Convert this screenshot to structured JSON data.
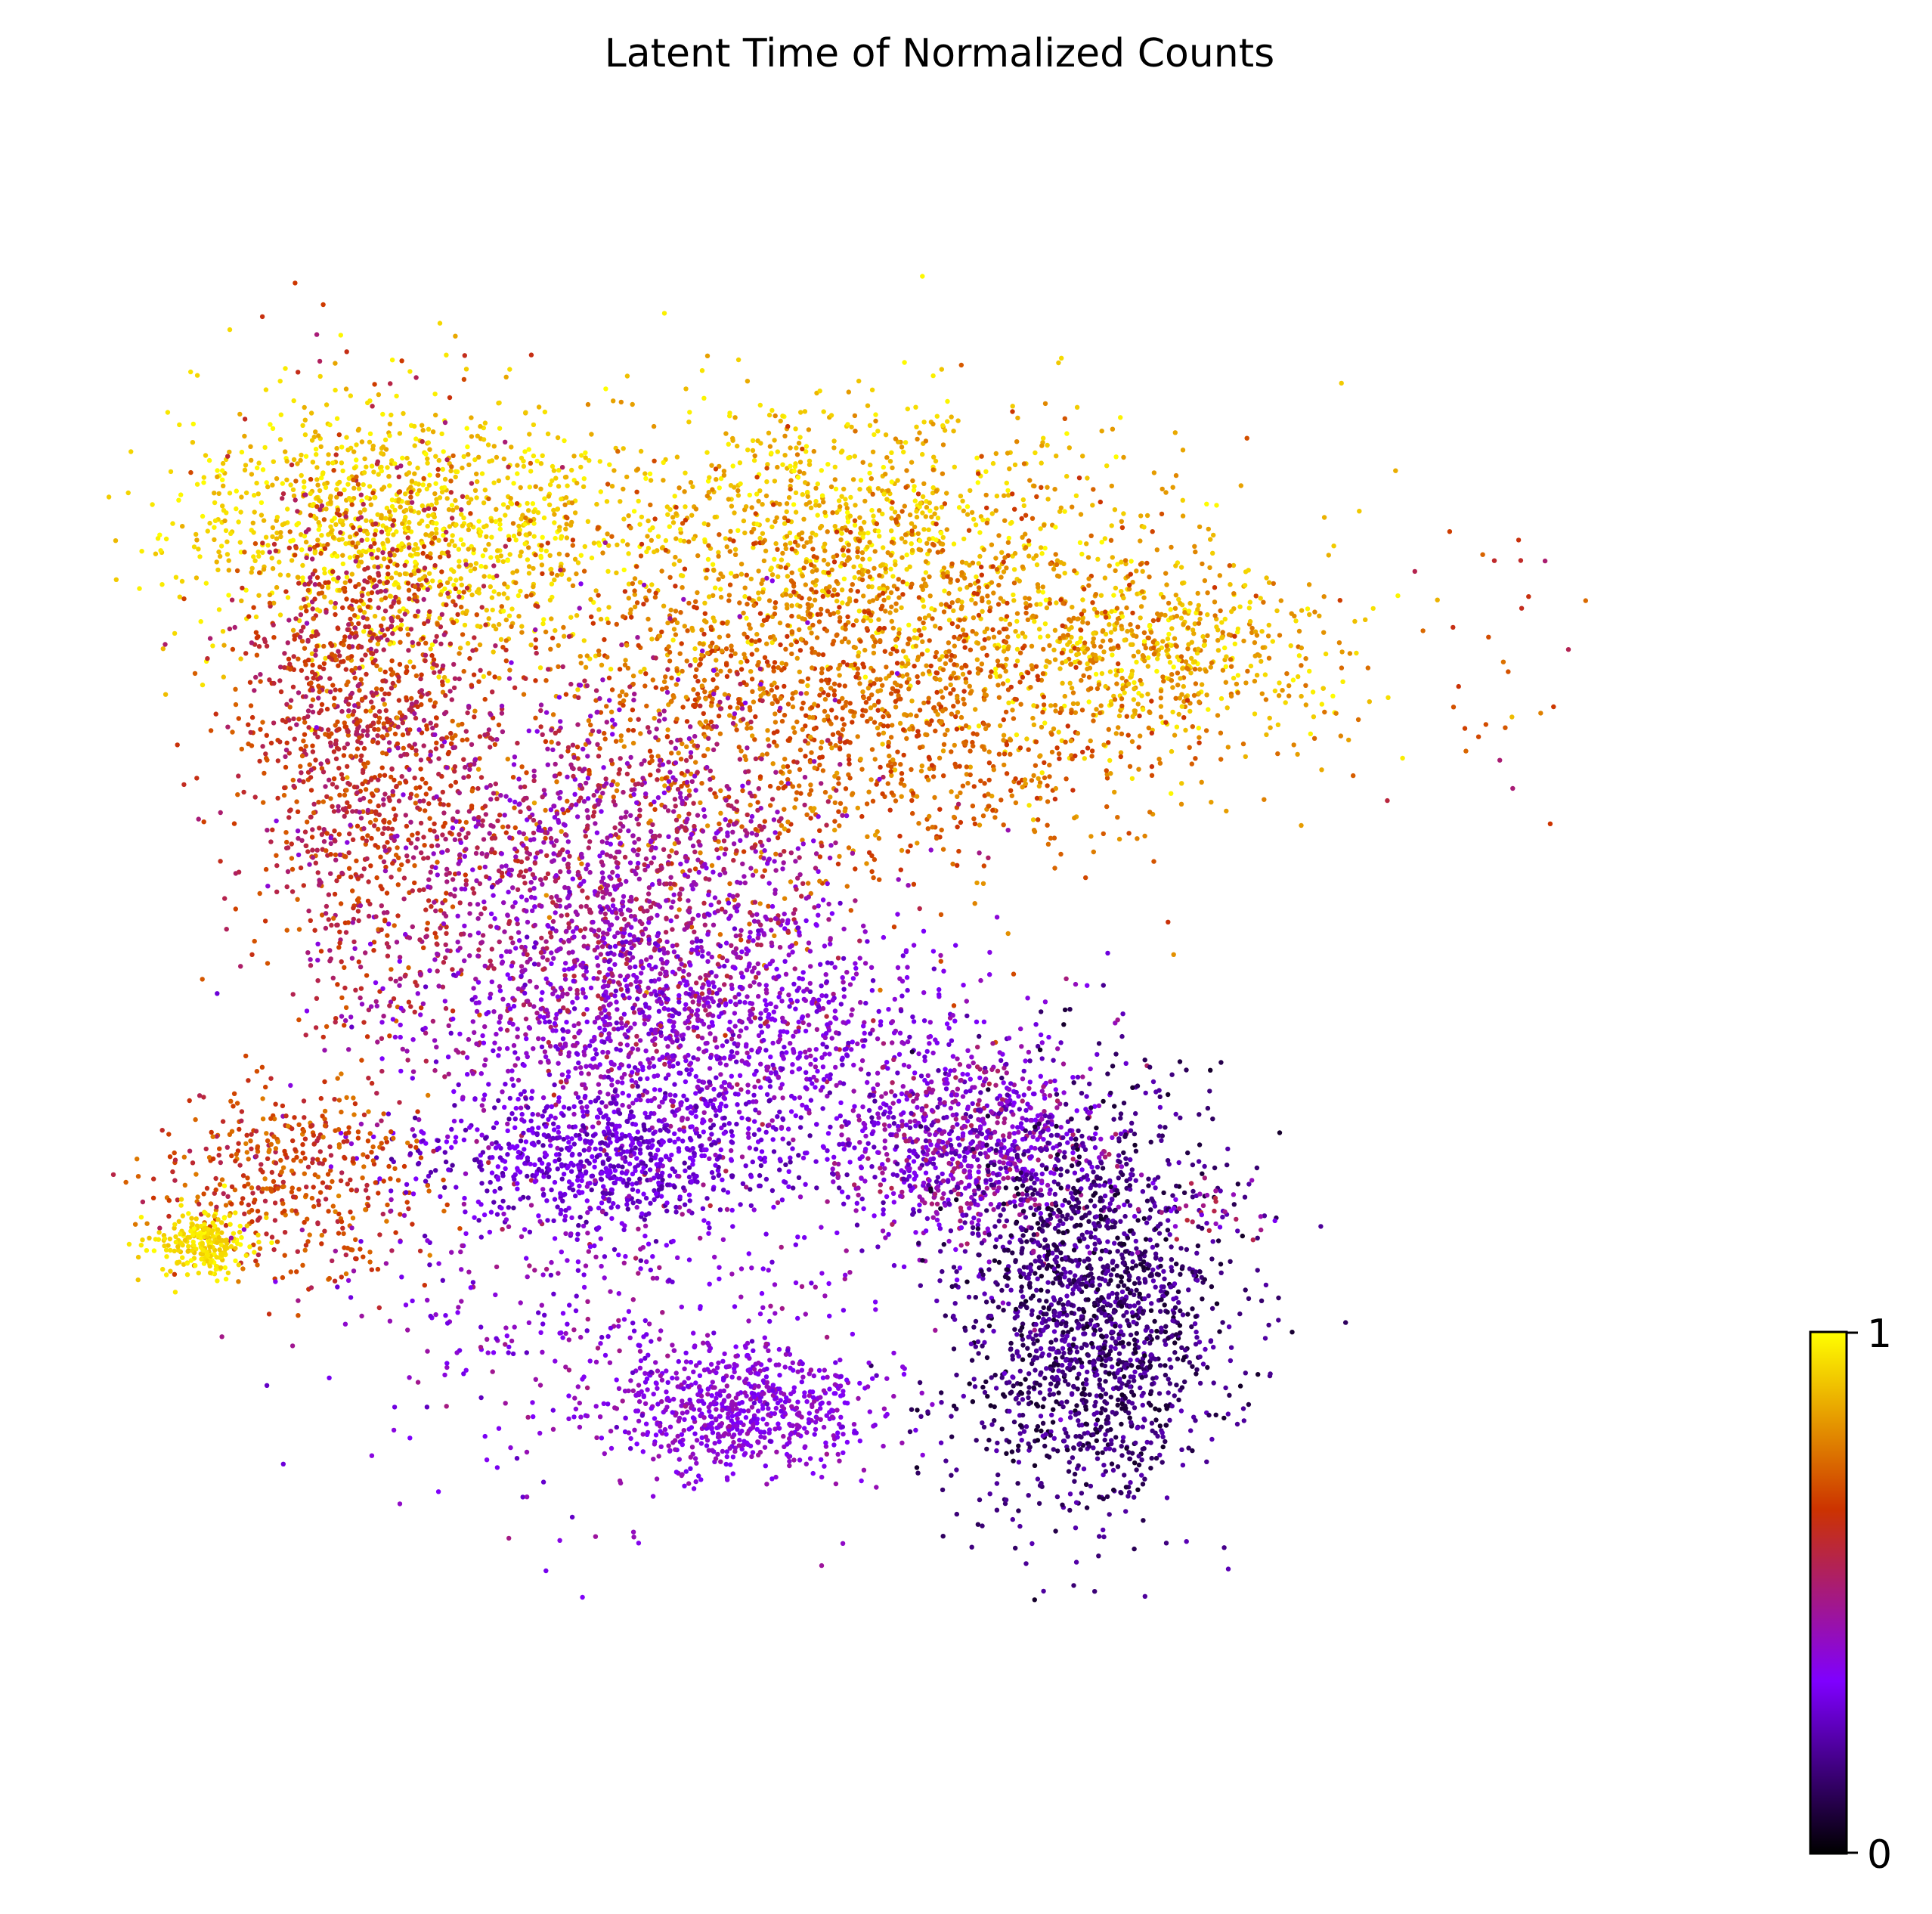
{
  "chart_data": {
    "type": "scatter",
    "title": "Latent Time of Normalized Counts",
    "xlabel": "",
    "ylabel": "",
    "axes_visible": false,
    "grid": false,
    "color_variable": "latent time",
    "colormap": "gnuplot",
    "colormap_stops": [
      "#000000",
      "#7f00ff",
      "#cc3300",
      "#ffff00"
    ],
    "colorbar": {
      "placement": "bottom-right",
      "range": [
        0,
        1
      ],
      "tick_labels": [
        "0",
        "1"
      ]
    },
    "xlim": [
      0,
      100
    ],
    "ylim": [
      0,
      100
    ],
    "point_count_estimate": 30000,
    "point_size": "small",
    "series": [
      {
        "name": "",
        "mode": "cluster",
        "x": 18,
        "y": 78,
        "sx": 7,
        "sy": 4,
        "t": [
          0.85,
          1.0
        ],
        "weight": 5
      },
      {
        "name": "",
        "mode": "cluster",
        "x": 45,
        "y": 78,
        "sx": 8,
        "sy": 4,
        "t": [
          0.8,
          1.0
        ],
        "weight": 4
      },
      {
        "name": "",
        "mode": "cluster",
        "x": 62,
        "y": 70,
        "sx": 6,
        "sy": 3,
        "t": [
          0.75,
          1.0
        ],
        "weight": 3
      },
      {
        "name": "",
        "mode": "cluster",
        "x": 44,
        "y": 68,
        "sx": 10,
        "sy": 6,
        "t": [
          0.65,
          0.85
        ],
        "weight": 8
      },
      {
        "name": "",
        "mode": "cluster",
        "x": 16,
        "y": 66,
        "sx": 4,
        "sy": 8,
        "t": [
          0.5,
          0.75
        ],
        "weight": 6
      },
      {
        "name": "",
        "mode": "cluster",
        "x": 30,
        "y": 55,
        "sx": 7,
        "sy": 7,
        "t": [
          0.35,
          0.6
        ],
        "weight": 8
      },
      {
        "name": "",
        "mode": "cluster",
        "x": 36,
        "y": 46,
        "sx": 8,
        "sy": 4,
        "t": [
          0.25,
          0.45
        ],
        "weight": 5
      },
      {
        "name": "",
        "mode": "cluster",
        "x": 52,
        "y": 40,
        "sx": 4,
        "sy": 3,
        "t": [
          0.2,
          0.55
        ],
        "weight": 4
      },
      {
        "name": "",
        "mode": "cluster",
        "x": 30,
        "y": 39,
        "sx": 6,
        "sy": 2,
        "t": [
          0.2,
          0.35
        ],
        "weight": 3
      },
      {
        "name": "",
        "mode": "cluster",
        "x": 38,
        "y": 24,
        "sx": 4,
        "sy": 2,
        "t": [
          0.3,
          0.45
        ],
        "weight": 3
      },
      {
        "name": "",
        "mode": "cluster",
        "x": 59,
        "y": 30,
        "sx": 4,
        "sy": 6,
        "t": [
          0.05,
          0.25
        ],
        "weight": 8
      },
      {
        "name": "",
        "mode": "cluster",
        "x": 11,
        "y": 38,
        "sx": 4,
        "sy": 3,
        "t": [
          0.55,
          0.8
        ],
        "weight": 2
      },
      {
        "name": "",
        "mode": "cluster",
        "x": 6,
        "y": 34,
        "sx": 1.5,
        "sy": 1,
        "t": [
          0.9,
          1.0
        ],
        "weight": 1
      },
      {
        "name": "",
        "mode": "cluster",
        "x": 30,
        "y": 30,
        "sx": 9,
        "sy": 6,
        "t": [
          0.25,
          0.5
        ],
        "weight": 2
      },
      {
        "name": "",
        "mode": "cluster",
        "x": 82,
        "y": 68,
        "sx": 3,
        "sy": 5,
        "t": [
          0.5,
          0.9
        ],
        "weight": 0.15
      },
      {
        "name": "",
        "mode": "cluster",
        "x": 66,
        "y": 36,
        "sx": 2,
        "sy": 1,
        "t": [
          0.3,
          0.6
        ],
        "weight": 0.15
      }
    ]
  }
}
